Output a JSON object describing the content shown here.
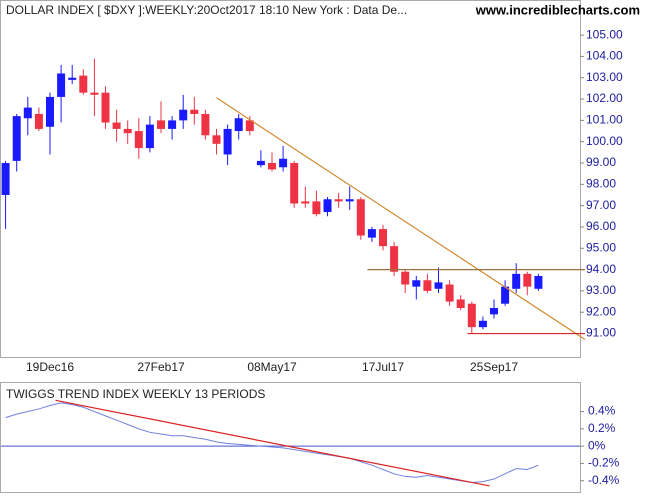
{
  "chart_data": [
    {
      "type": "candlestick",
      "title": "DOLLAR INDEX [ $DXY ]:WEEKLY:20Oct2017 18:10 New York : Data De...",
      "subtitle": "www.incrediblecharts.com",
      "categories": [
        null,
        null,
        null,
        null,
        "19Dec16",
        null,
        null,
        null,
        null,
        null,
        null,
        null,
        null,
        null,
        "27Feb17",
        null,
        null,
        null,
        null,
        null,
        null,
        null,
        null,
        null,
        "08May17",
        null,
        null,
        null,
        null,
        null,
        null,
        null,
        null,
        null,
        "17Jul17",
        null,
        null,
        null,
        null,
        null,
        null,
        null,
        null,
        null,
        "25Sep17",
        null,
        null,
        null,
        null
      ],
      "up_color": "#1a1aff",
      "down_color": "#ee3344",
      "open": [
        97.5,
        99.1,
        101.1,
        101.3,
        100.7,
        102.1,
        102.9,
        103.1,
        102.3,
        102.3,
        100.9,
        100.6,
        100.5,
        99.7,
        101.0,
        100.6,
        101.0,
        101.5,
        101.3,
        100.3,
        99.4,
        100.5,
        101.0,
        98.9,
        99.0,
        98.8,
        99.0,
        97.2,
        97.2,
        96.7,
        97.3,
        97.2,
        97.3,
        95.5,
        95.9,
        95.1,
        93.9,
        93.2,
        93.5,
        93.1,
        93.3,
        92.6,
        92.4,
        91.3,
        91.9,
        92.4,
        93.1,
        93.8,
        93.1
      ],
      "high": [
        99.1,
        101.3,
        102.1,
        101.6,
        102.3,
        103.6,
        103.6,
        103.4,
        103.9,
        102.6,
        101.5,
        101.0,
        101.1,
        101.2,
        101.9,
        101.2,
        102.2,
        102.1,
        101.5,
        100.6,
        100.8,
        101.3,
        101.2,
        99.6,
        99.5,
        99.8,
        99.1,
        97.9,
        97.7,
        97.4,
        97.6,
        97.9,
        97.4,
        96.0,
        96.1,
        95.3,
        94.0,
        93.7,
        93.8,
        94.1,
        93.5,
        92.8,
        92.5,
        91.8,
        92.6,
        93.5,
        94.3,
        93.9,
        93.8
      ],
      "low": [
        95.9,
        98.6,
        100.3,
        100.5,
        99.4,
        100.9,
        102.7,
        102.2,
        101.2,
        100.6,
        100.0,
        99.9,
        99.2,
        99.5,
        100.4,
        100.1,
        100.6,
        100.8,
        100.1,
        99.4,
        98.9,
        100.1,
        100.3,
        98.8,
        98.6,
        98.6,
        96.9,
        96.9,
        96.5,
        96.5,
        96.9,
        96.8,
        95.4,
        95.3,
        94.9,
        93.7,
        92.9,
        92.6,
        92.9,
        92.9,
        92.3,
        92.1,
        91.0,
        91.2,
        91.7,
        92.3,
        92.9,
        92.8,
        93.0
      ],
      "close": [
        99.0,
        101.2,
        101.6,
        100.6,
        102.1,
        103.2,
        103.0,
        102.3,
        102.2,
        100.9,
        100.6,
        100.4,
        99.7,
        100.8,
        100.6,
        101.0,
        101.5,
        101.3,
        100.3,
        99.9,
        100.6,
        101.1,
        100.5,
        99.1,
        98.7,
        99.2,
        97.1,
        97.1,
        96.6,
        97.3,
        97.2,
        97.3,
        95.6,
        95.9,
        95.1,
        93.9,
        93.3,
        93.5,
        93.0,
        93.4,
        92.5,
        92.2,
        91.3,
        91.6,
        92.2,
        93.2,
        93.8,
        93.2,
        93.7
      ],
      "ylim": [
        89.9,
        106.6
      ],
      "yticks": [
        {
          "value": 91,
          "label": "91.00"
        },
        {
          "value": 92,
          "label": "92.00"
        },
        {
          "value": 93,
          "label": "93.00"
        },
        {
          "value": 94,
          "label": "94.00"
        },
        {
          "value": 95,
          "label": "95.00"
        },
        {
          "value": 96,
          "label": "96.00"
        },
        {
          "value": 97,
          "label": "97.00"
        },
        {
          "value": 98,
          "label": "98.00"
        },
        {
          "value": 99,
          "label": "99.00"
        },
        {
          "value": 100,
          "label": "100.00"
        },
        {
          "value": 101,
          "label": "101.00"
        },
        {
          "value": 102,
          "label": "102.00"
        },
        {
          "value": 103,
          "label": "103.00"
        },
        {
          "value": 104,
          "label": "104.00"
        },
        {
          "value": 105,
          "label": "105.00"
        }
      ],
      "lines": [
        {
          "color": "#d08a30",
          "x": [
            19,
            52.2
          ],
          "y": [
            102.06,
            90.72
          ]
        },
        {
          "color": "#a07040",
          "x": [
            32.6,
            52.2
          ],
          "y": [
            94,
            94
          ]
        },
        {
          "color": "#dd2222",
          "x": [
            41.6,
            52.2
          ],
          "y": [
            91,
            91
          ]
        }
      ]
    },
    {
      "type": "line",
      "title": "TWIGGS TREND INDEX WEEKLY 13 PERIODS",
      "series": [
        {
          "color": "#7080e0",
          "values": [
            0.33,
            0.37,
            0.4,
            0.43,
            0.47,
            0.5,
            0.48,
            0.45,
            0.4,
            0.35,
            0.3,
            0.25,
            0.2,
            0.16,
            0.14,
            0.12,
            0.12,
            0.1,
            0.08,
            0.05,
            0.03,
            0.02,
            0.01,
            0.0,
            -0.01,
            -0.02,
            -0.04,
            -0.06,
            -0.08,
            -0.1,
            -0.12,
            -0.14,
            -0.18,
            -0.22,
            -0.27,
            -0.32,
            -0.35,
            -0.36,
            -0.34,
            -0.36,
            -0.38,
            -0.4,
            -0.42,
            -0.41,
            -0.38,
            -0.32,
            -0.26,
            -0.27,
            -0.22
          ]
        }
      ],
      "ylim": [
        -0.53,
        0.73
      ],
      "yticks": [
        {
          "value": -0.4,
          "label": "-0.4%"
        },
        {
          "value": -0.2,
          "label": "-0.2%"
        },
        {
          "value": 0,
          "label": "0%"
        },
        {
          "value": 0.2,
          "label": "0.2%"
        },
        {
          "value": 0.4,
          "label": "0.4%"
        }
      ],
      "zero_line_color": "#4455cc",
      "lines": [
        {
          "color": "#dd2222",
          "x": [
            4.5,
            43.6
          ],
          "y": [
            0.53,
            -0.46
          ]
        }
      ]
    }
  ]
}
